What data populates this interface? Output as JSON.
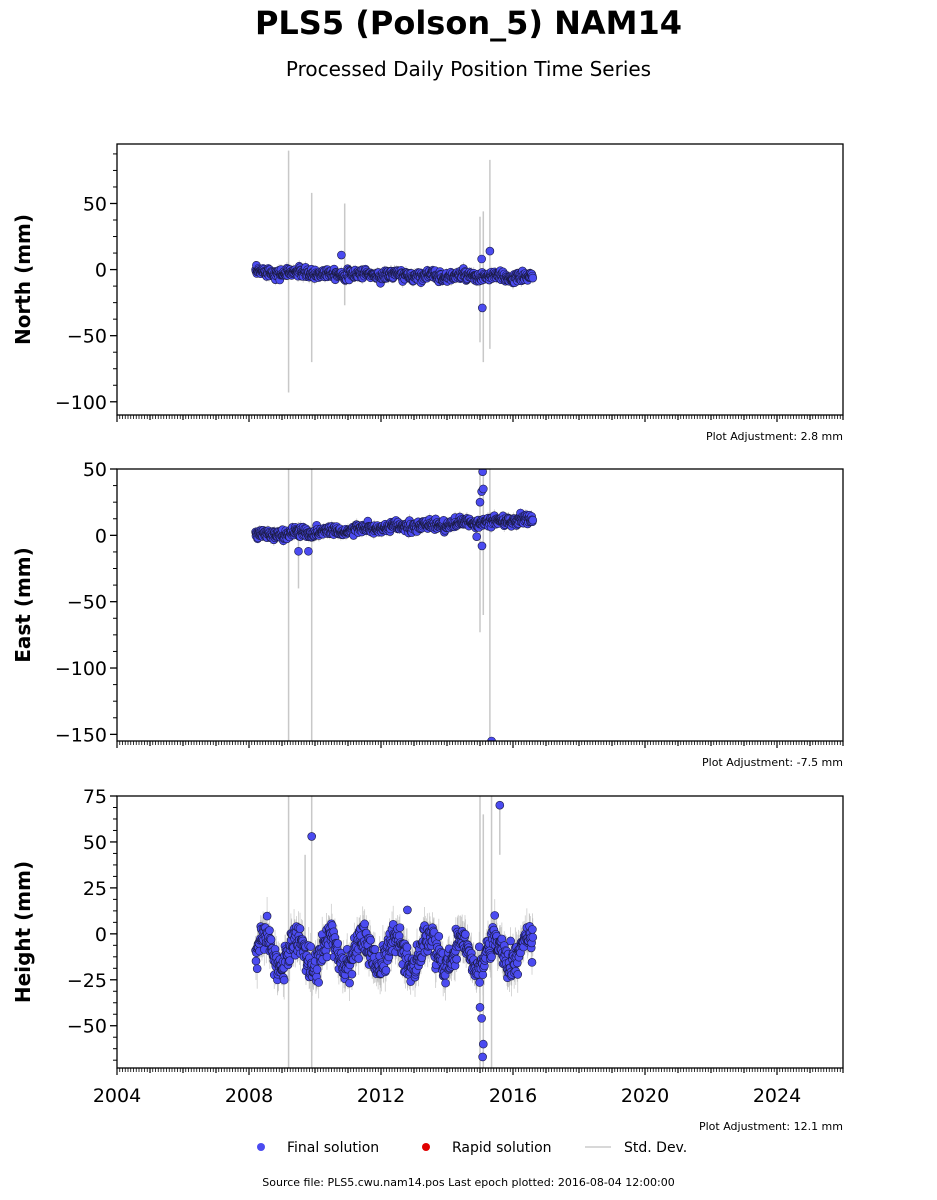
{
  "title": "PLS5 (Polson_5) NAM14",
  "subtitle": "Processed Daily Position Time Series",
  "source_text": "Source file: PLS5.cwu.nam14.pos  Last epoch plotted: 2016-08-04 12:00:00",
  "colors": {
    "final": "#4b4bf0",
    "rapid": "#e00000",
    "stddev": "#cccccc"
  },
  "legend": [
    {
      "label": "Final solution",
      "marker": "circle",
      "color": "#4b4bf0"
    },
    {
      "label": "Rapid solution",
      "marker": "circle",
      "color": "#e00000"
    },
    {
      "label": "Std. Dev.",
      "marker": "line",
      "color": "#cccccc"
    }
  ],
  "chart_data": [
    {
      "type": "scatter",
      "ylabel": "North (mm)",
      "adjustment": "Plot Adjustment: 2.8 mm",
      "xlim": [
        2004,
        2026
      ],
      "ylim": [
        -110,
        95
      ],
      "yticks": [
        50,
        0,
        -50,
        -100
      ],
      "yticklabels": [
        "50",
        "0",
        "−50",
        "−100"
      ],
      "data_range": [
        2008.2,
        2016.6
      ],
      "trend": [
        [
          2008.2,
          -2
        ],
        [
          2016.6,
          -6
        ]
      ],
      "scatter_amp": 3,
      "seasonal_amp": 1,
      "outliers": [
        {
          "x": 2010.8,
          "y": 11
        },
        {
          "x": 2015.05,
          "y": 8
        },
        {
          "x": 2015.07,
          "y": -29
        },
        {
          "x": 2015.3,
          "y": 14
        }
      ],
      "errorbars": [
        {
          "x": 2009.2,
          "low": -93,
          "high": 90
        },
        {
          "x": 2009.9,
          "low": -70,
          "high": 58
        },
        {
          "x": 2010.9,
          "low": -27,
          "high": 50
        },
        {
          "x": 2015.0,
          "low": -55,
          "high": 40
        },
        {
          "x": 2015.1,
          "low": -70,
          "high": 44
        },
        {
          "x": 2015.3,
          "low": -60,
          "high": 83
        }
      ]
    },
    {
      "type": "scatter",
      "ylabel": "East (mm)",
      "adjustment": "Plot Adjustment: -7.5 mm",
      "xlim": [
        2004,
        2026
      ],
      "ylim": [
        -155,
        50
      ],
      "yticks": [
        50,
        0,
        -50,
        -100,
        -150
      ],
      "yticklabels": [
        "50",
        "0",
        "−50",
        "−100",
        "−150"
      ],
      "data_range": [
        2008.2,
        2016.6
      ],
      "trend": [
        [
          2008.2,
          0
        ],
        [
          2016.6,
          12
        ]
      ],
      "scatter_amp": 3,
      "seasonal_amp": 1,
      "outliers": [
        {
          "x": 2009.5,
          "y": -12
        },
        {
          "x": 2009.8,
          "y": -12
        },
        {
          "x": 2014.9,
          "y": -1
        },
        {
          "x": 2015.0,
          "y": 25
        },
        {
          "x": 2015.05,
          "y": 33
        },
        {
          "x": 2015.1,
          "y": 35
        },
        {
          "x": 2015.08,
          "y": 48
        },
        {
          "x": 2015.06,
          "y": -8
        },
        {
          "x": 2015.35,
          "y": -155
        }
      ],
      "errorbars": [
        {
          "x": 2009.2,
          "low": -155,
          "high": 50
        },
        {
          "x": 2009.9,
          "low": -155,
          "high": 50
        },
        {
          "x": 2009.5,
          "low": -40,
          "high": 10
        },
        {
          "x": 2015.0,
          "low": -73,
          "high": 50
        },
        {
          "x": 2015.1,
          "low": -60,
          "high": 50
        },
        {
          "x": 2015.3,
          "low": -155,
          "high": 50
        }
      ]
    },
    {
      "type": "scatter",
      "ylabel": "Height (mm)",
      "adjustment": "Plot Adjustment: 12.1 mm",
      "xlim": [
        2004,
        2026
      ],
      "ylim": [
        -73,
        75
      ],
      "yticks": [
        75,
        50,
        25,
        0,
        -25,
        -50
      ],
      "yticklabels": [
        "75",
        "50",
        "25",
        "0",
        "−25",
        "−50"
      ],
      "xticks": [
        2004,
        2008,
        2012,
        2016,
        2020,
        2024
      ],
      "xticklabels": [
        "2004",
        "2008",
        "2012",
        "2016",
        "2020",
        "2024"
      ],
      "data_range": [
        2008.2,
        2016.6
      ],
      "trend": [
        [
          2008.2,
          -10
        ],
        [
          2016.6,
          -10
        ]
      ],
      "scatter_amp": 7,
      "seasonal_amp": 8,
      "outliers": [
        {
          "x": 2009.9,
          "y": 53
        },
        {
          "x": 2015.6,
          "y": 70
        },
        {
          "x": 2015.05,
          "y": -46
        },
        {
          "x": 2015.1,
          "y": -60
        },
        {
          "x": 2015.08,
          "y": -67
        },
        {
          "x": 2015.0,
          "y": -40
        },
        {
          "x": 2012.8,
          "y": 13
        }
      ],
      "errorbars": [
        {
          "x": 2009.2,
          "low": -73,
          "high": 75
        },
        {
          "x": 2009.9,
          "low": -73,
          "high": 75
        },
        {
          "x": 2009.7,
          "low": -20,
          "high": 43
        },
        {
          "x": 2015.0,
          "low": -73,
          "high": 75
        },
        {
          "x": 2015.1,
          "low": -73,
          "high": 65
        },
        {
          "x": 2015.35,
          "low": -73,
          "high": 75
        },
        {
          "x": 2015.6,
          "low": 43,
          "high": 72
        }
      ]
    }
  ]
}
